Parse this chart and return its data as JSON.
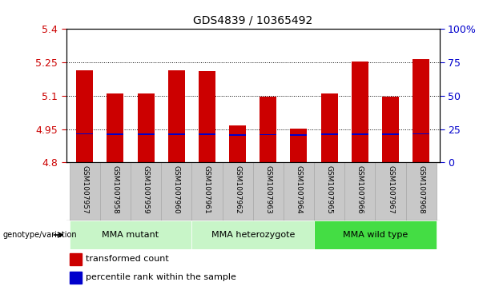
{
  "title": "GDS4839 / 10365492",
  "samples": [
    "GSM1007957",
    "GSM1007958",
    "GSM1007959",
    "GSM1007960",
    "GSM1007961",
    "GSM1007962",
    "GSM1007963",
    "GSM1007964",
    "GSM1007965",
    "GSM1007966",
    "GSM1007967",
    "GSM1007968"
  ],
  "transformed_count": [
    5.215,
    5.11,
    5.11,
    5.215,
    5.21,
    4.968,
    5.095,
    4.952,
    5.11,
    5.255,
    5.095,
    5.265
  ],
  "bar_base": 4.8,
  "blue_marker_value": [
    4.928,
    4.926,
    4.926,
    4.926,
    4.926,
    4.924,
    4.925,
    4.924,
    4.926,
    4.926,
    4.926,
    4.928
  ],
  "ylim": [
    4.8,
    5.4
  ],
  "yticks_left": [
    4.8,
    4.95,
    5.1,
    5.25,
    5.4
  ],
  "yticks_right": [
    0,
    25,
    50,
    75,
    100
  ],
  "groups_info": [
    {
      "label": "MMA mutant",
      "start": 0,
      "end": 3,
      "color": "#c8f5c8"
    },
    {
      "label": "MMA heterozygote",
      "start": 4,
      "end": 7,
      "color": "#c8f5c8"
    },
    {
      "label": "MMA wild type",
      "start": 8,
      "end": 11,
      "color": "#44dd44"
    }
  ],
  "bar_color": "#cc0000",
  "blue_color": "#0000cc",
  "tick_label_bg": "#c8c8c8",
  "legend_items": [
    {
      "color": "#cc0000",
      "label": "transformed count"
    },
    {
      "color": "#0000cc",
      "label": "percentile rank within the sample"
    }
  ],
  "axis_color_left": "#cc0000",
  "axis_color_right": "#0000cc",
  "title_fontsize": 10,
  "grid_yticks": [
    4.95,
    5.1,
    5.25
  ]
}
